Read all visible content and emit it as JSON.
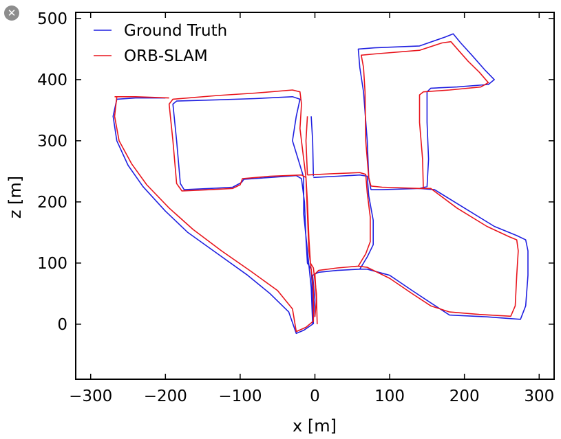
{
  "window": {
    "close_icon": "close-icon",
    "close_glyph": "✕"
  },
  "chart_data": {
    "type": "line",
    "xlabel": "x [m]",
    "ylabel": "z [m]",
    "xlim": [
      -320,
      320
    ],
    "ylim": [
      -90,
      510
    ],
    "xticks": [
      -300,
      -200,
      -100,
      0,
      100,
      200,
      300
    ],
    "xtick_labels": [
      "−300",
      "−200",
      "−100",
      "0",
      "100",
      "200",
      "300"
    ],
    "yticks": [
      0,
      100,
      200,
      300,
      400,
      500
    ],
    "ytick_labels": [
      "0",
      "100",
      "200",
      "300",
      "400",
      "500"
    ],
    "grid": false,
    "legend_position": "top-left",
    "series": [
      {
        "name": "Ground Truth",
        "color": "#1f1fe0",
        "segments": [
          [
            [
              -265,
              368
            ],
            [
              -270,
              340
            ],
            [
              -265,
              300
            ],
            [
              -250,
              260
            ],
            [
              -230,
              225
            ],
            [
              -200,
              185
            ],
            [
              -170,
              150
            ],
            [
              -130,
              115
            ],
            [
              -90,
              80
            ],
            [
              -60,
              50
            ],
            [
              -35,
              20
            ],
            [
              -25,
              -15
            ],
            [
              -15,
              -10
            ],
            [
              -3,
              0
            ],
            [
              -5,
              60
            ],
            [
              -10,
              120
            ],
            [
              -15,
              180
            ],
            [
              -15,
              240
            ],
            [
              -20,
              260
            ],
            [
              -30,
              300
            ],
            [
              -25,
              340
            ],
            [
              -20,
              368
            ],
            [
              -30,
              372
            ],
            [
              -80,
              369
            ],
            [
              -130,
              367
            ],
            [
              -185,
              365
            ],
            [
              -190,
              360
            ],
            [
              -185,
              300
            ],
            [
              -180,
              230
            ],
            [
              -175,
              220
            ],
            [
              -140,
              222
            ],
            [
              -110,
              224
            ],
            [
              -98,
              232
            ],
            [
              -95,
              237
            ],
            [
              -60,
              240
            ],
            [
              -25,
              243
            ],
            [
              -18,
              238
            ],
            [
              -14,
              200
            ],
            [
              -12,
              140
            ],
            [
              -10,
              100
            ],
            [
              -5,
              90
            ],
            [
              -3,
              50
            ],
            [
              -2,
              0
            ]
          ],
          [
            [
              -265,
              368
            ],
            [
              -240,
              370
            ],
            [
              -200,
              370
            ]
          ],
          [
            [
              -2,
              240
            ],
            [
              30,
              242
            ],
            [
              60,
              244
            ],
            [
              70,
              242
            ],
            [
              72,
              210
            ],
            [
              78,
              170
            ],
            [
              78,
              130
            ],
            [
              70,
              110
            ],
            [
              60,
              90
            ],
            [
              30,
              88
            ],
            [
              5,
              85
            ],
            [
              -3,
              80
            ],
            [
              0,
              40
            ],
            [
              -2,
              10
            ]
          ],
          [
            [
              60,
              90
            ],
            [
              70,
              90
            ],
            [
              100,
              80
            ],
            [
              130,
              55
            ],
            [
              155,
              35
            ],
            [
              180,
              15
            ],
            [
              230,
              12
            ],
            [
              275,
              8
            ],
            [
              282,
              30
            ],
            [
              285,
              80
            ],
            [
              285,
              120
            ],
            [
              282,
              138
            ],
            [
              270,
              145
            ],
            [
              240,
              160
            ],
            [
              200,
              190
            ],
            [
              160,
              220
            ],
            [
              140,
              222
            ],
            [
              90,
              220
            ],
            [
              75,
              220
            ]
          ],
          [
            [
              75,
              220
            ],
            [
              72,
              240
            ],
            [
              70,
              300
            ],
            [
              65,
              380
            ],
            [
              60,
              420
            ],
            [
              58,
              450
            ],
            [
              80,
              452
            ],
            [
              140,
              455
            ],
            [
              175,
              470
            ],
            [
              185,
              475
            ],
            [
              195,
              460
            ],
            [
              210,
              440
            ],
            [
              228,
              415
            ],
            [
              240,
              400
            ],
            [
              232,
              392
            ],
            [
              190,
              388
            ],
            [
              155,
              386
            ],
            [
              150,
              380
            ],
            [
              150,
              330
            ],
            [
              152,
              270
            ],
            [
              150,
              225
            ],
            [
              140,
              222
            ]
          ],
          [
            [
              -2,
              242
            ],
            [
              -3,
              300
            ],
            [
              -5,
              340
            ]
          ]
        ]
      },
      {
        "name": "ORB-SLAM",
        "color": "#e8141c",
        "segments": [
          [
            [
              -265,
              372
            ],
            [
              -268,
              340
            ],
            [
              -262,
              300
            ],
            [
              -245,
              262
            ],
            [
              -225,
              228
            ],
            [
              -195,
              190
            ],
            [
              -163,
              155
            ],
            [
              -125,
              120
            ],
            [
              -85,
              86
            ],
            [
              -50,
              55
            ],
            [
              -30,
              25
            ],
            [
              -25,
              -12
            ],
            [
              -12,
              -5
            ],
            [
              -2,
              5
            ],
            [
              -2,
              60
            ],
            [
              -8,
              120
            ],
            [
              -10,
              180
            ],
            [
              -12,
              240
            ],
            [
              -15,
              270
            ],
            [
              -20,
              320
            ],
            [
              -18,
              360
            ],
            [
              -20,
              380
            ],
            [
              -30,
              383
            ],
            [
              -80,
              378
            ],
            [
              -130,
              374
            ],
            [
              -190,
              368
            ],
            [
              -195,
              360
            ],
            [
              -190,
              300
            ],
            [
              -185,
              230
            ],
            [
              -178,
              218
            ],
            [
              -140,
              220
            ],
            [
              -110,
              222
            ],
            [
              -100,
              228
            ],
            [
              -97,
              238
            ],
            [
              -60,
              242
            ],
            [
              -18,
              244
            ],
            [
              -12,
              240
            ],
            [
              -10,
              200
            ],
            [
              -8,
              140
            ],
            [
              -6,
              100
            ],
            [
              -2,
              92
            ],
            [
              2,
              50
            ],
            [
              3,
              0
            ]
          ],
          [
            [
              -268,
              372
            ],
            [
              -240,
              372
            ],
            [
              -195,
              370
            ]
          ],
          [
            [
              -10,
              244
            ],
            [
              20,
              246
            ],
            [
              60,
              248
            ],
            [
              68,
              245
            ],
            [
              70,
              215
            ],
            [
              74,
              175
            ],
            [
              74,
              135
            ],
            [
              68,
              115
            ],
            [
              58,
              95
            ],
            [
              30,
              92
            ],
            [
              5,
              88
            ],
            [
              0,
              82
            ],
            [
              2,
              40
            ],
            [
              0,
              12
            ]
          ],
          [
            [
              58,
              95
            ],
            [
              70,
              93
            ],
            [
              100,
              75
            ],
            [
              130,
              50
            ],
            [
              155,
              30
            ],
            [
              180,
              20
            ],
            [
              220,
              16
            ],
            [
              262,
              13
            ],
            [
              268,
              30
            ],
            [
              270,
              80
            ],
            [
              272,
              120
            ],
            [
              270,
              138
            ],
            [
              260,
              143
            ],
            [
              230,
              160
            ],
            [
              190,
              190
            ],
            [
              155,
              222
            ],
            [
              140,
              222
            ],
            [
              90,
              224
            ],
            [
              75,
              226
            ]
          ],
          [
            [
              75,
              226
            ],
            [
              72,
              240
            ],
            [
              68,
              300
            ],
            [
              67,
              380
            ],
            [
              65,
              420
            ],
            [
              62,
              440
            ],
            [
              80,
              442
            ],
            [
              140,
              448
            ],
            [
              170,
              460
            ],
            [
              182,
              462
            ],
            [
              192,
              448
            ],
            [
              205,
              430
            ],
            [
              220,
              412
            ],
            [
              232,
              395
            ],
            [
              222,
              388
            ],
            [
              180,
              383
            ],
            [
              145,
              380
            ],
            [
              140,
              375
            ],
            [
              140,
              330
            ],
            [
              144,
              270
            ],
            [
              145,
              222
            ]
          ],
          [
            [
              -10,
              244
            ],
            [
              -12,
              300
            ],
            [
              -10,
              340
            ]
          ]
        ]
      }
    ]
  }
}
